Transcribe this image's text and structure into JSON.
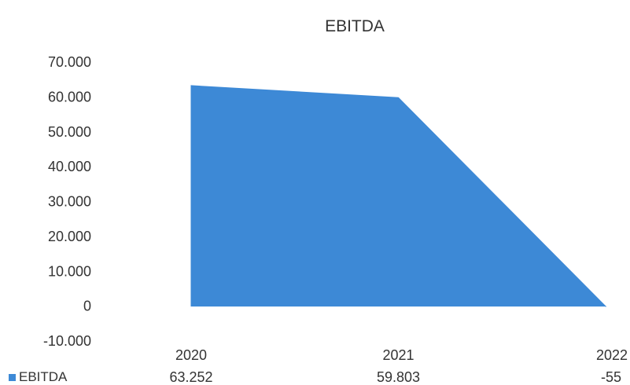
{
  "chart_data": {
    "type": "area",
    "title": "EBITDA",
    "categories": [
      "2020",
      "2021",
      "2022"
    ],
    "series": [
      {
        "name": "EBITDA",
        "values": [
          63252,
          59803,
          -55
        ]
      }
    ],
    "value_labels": [
      "63.252",
      "59.803",
      "-55"
    ],
    "ylim": [
      -10000,
      70000
    ],
    "yticks": [
      -10000,
      0,
      10000,
      20000,
      30000,
      40000,
      50000,
      60000,
      70000
    ],
    "ytick_labels": [
      "-10.000",
      "0",
      "10.000",
      "20.000",
      "30.000",
      "40.000",
      "50.000",
      "60.000",
      "70.000"
    ],
    "grid": false,
    "legend": "data-table-bottom",
    "colors": {
      "series": "#3d89d6",
      "text": "#333333"
    }
  }
}
